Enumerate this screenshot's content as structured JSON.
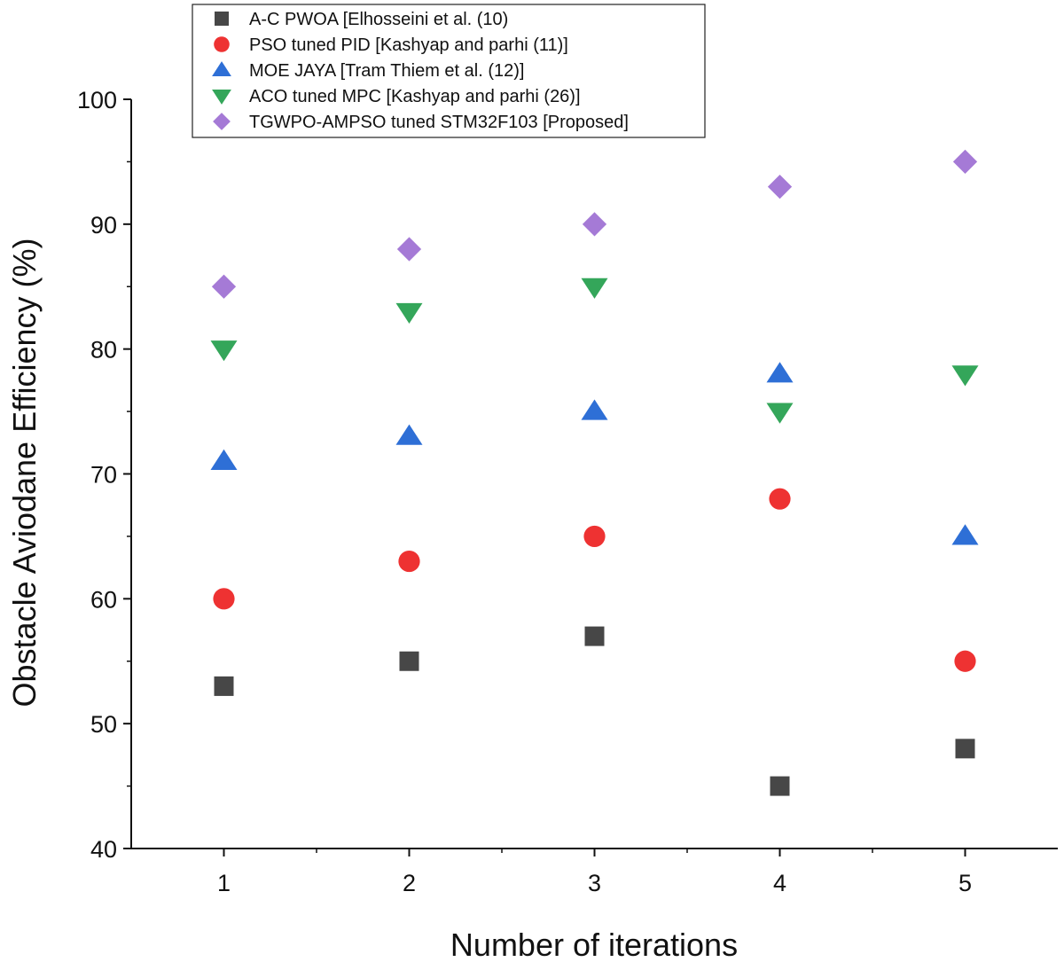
{
  "chart_data": {
    "type": "scatter",
    "title": "",
    "xlabel": "Number of iterations",
    "ylabel": "Obstacle Aviodane Efficiency (%)",
    "xlim": [
      0.5,
      5.5
    ],
    "ylim": [
      40,
      100
    ],
    "x": [
      1,
      2,
      3,
      4,
      5
    ],
    "x_ticks": [
      "1",
      "2",
      "3",
      "4",
      "5"
    ],
    "y_ticks": [
      "40",
      "50",
      "60",
      "70",
      "80",
      "90",
      "100"
    ],
    "grid": false,
    "legend_position": "top-left",
    "series": [
      {
        "name": "A-C PWOA [Elhosseini et al. (10)",
        "marker": "square",
        "color": "#474747",
        "values": [
          53,
          55,
          57,
          45,
          48
        ]
      },
      {
        "name": "PSO tuned PID [Kashyap and parhi (11)]",
        "marker": "circle",
        "color": "#ee3232",
        "values": [
          60,
          63,
          65,
          68,
          55
        ]
      },
      {
        "name": "MOE JAYA [Tram Thiem et al. (12)]",
        "marker": "triangle-up",
        "color": "#2e6fd6",
        "values": [
          71,
          73,
          75,
          78,
          65
        ]
      },
      {
        "name": "ACO tuned MPC [Kashyap and parhi (26)]",
        "marker": "triangle-down",
        "color": "#34a65a",
        "values": [
          80,
          83,
          85,
          75,
          78
        ]
      },
      {
        "name": "TGWPO-AMPSO tuned STM32F103 [Proposed]",
        "marker": "diamond",
        "color": "#a57ad6",
        "values": [
          85,
          88,
          90,
          93,
          95
        ]
      }
    ]
  }
}
